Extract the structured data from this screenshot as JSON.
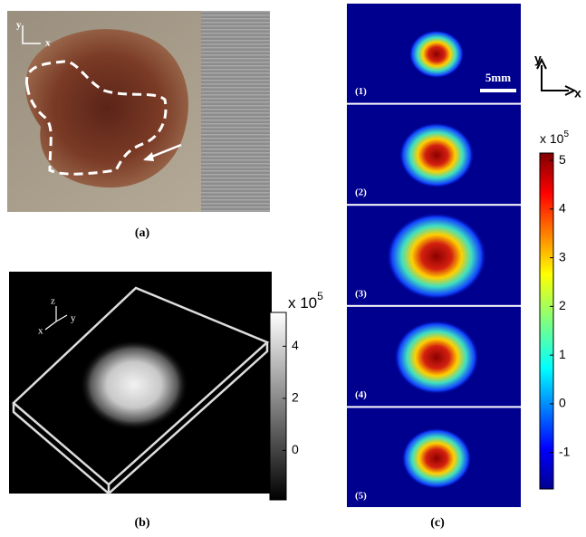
{
  "panels": {
    "a": {
      "label": "(a)",
      "axis_y": "y",
      "axis_x": "x"
    },
    "b": {
      "label": "(b)",
      "axis_z": "z",
      "axis_y": "y",
      "axis_x": "x",
      "colorbar": {
        "multiplier": "x 10",
        "exponent": "5",
        "lim": [
          -1.9,
          5.3
        ],
        "ticks": [
          0,
          2,
          4
        ]
      }
    },
    "c": {
      "label": "(c)",
      "frames": [
        "(1)",
        "(2)",
        "(3)",
        "(4)",
        "(5)"
      ],
      "scale_bar": "5mm",
      "axis_y": "y",
      "axis_x": "x",
      "colorbar": {
        "multiplier": "x 10",
        "exponent": "5",
        "lim": [
          -1.75,
          5.15
        ],
        "ticks": [
          -1,
          0,
          1,
          2,
          3,
          4,
          5
        ]
      }
    }
  }
}
